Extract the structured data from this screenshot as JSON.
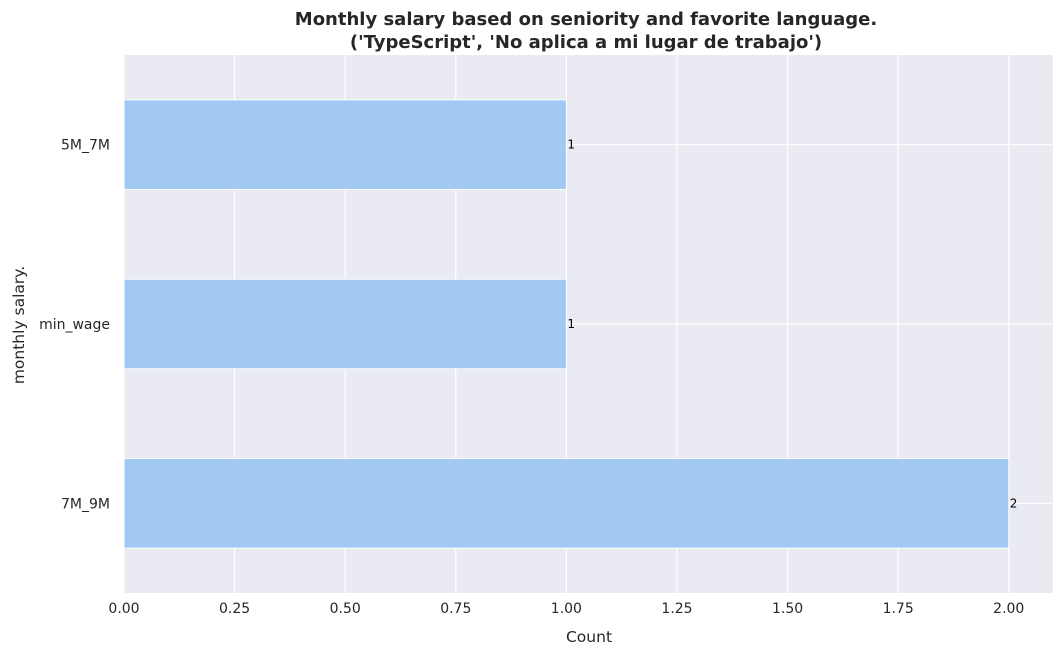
{
  "chart_data": {
    "type": "bar",
    "orientation": "horizontal",
    "title_lines": [
      "Monthly salary based on seniority and favorite language.",
      "('TypeScript', 'No aplica a mi lugar de trabajo')"
    ],
    "xlabel": "Count",
    "ylabel": "monthly salary.",
    "categories": [
      "5M_7M",
      "min_wage",
      "7M_9M"
    ],
    "values": [
      1,
      1,
      2
    ],
    "data_labels": [
      "1",
      "1",
      "2"
    ],
    "xlim": [
      0,
      2.1
    ],
    "xticks": [
      0,
      0.25,
      0.5,
      0.75,
      1.0,
      1.25,
      1.5,
      1.75,
      2.0
    ],
    "xtick_labels": [
      "0.00",
      "0.25",
      "0.50",
      "0.75",
      "1.00",
      "1.25",
      "1.50",
      "1.75",
      "2.00"
    ],
    "grid": true,
    "legend": "none",
    "colors": {
      "bar": "#a1c9f4",
      "plot_background": "#eaeaf2",
      "grid": "#ffffff"
    }
  }
}
